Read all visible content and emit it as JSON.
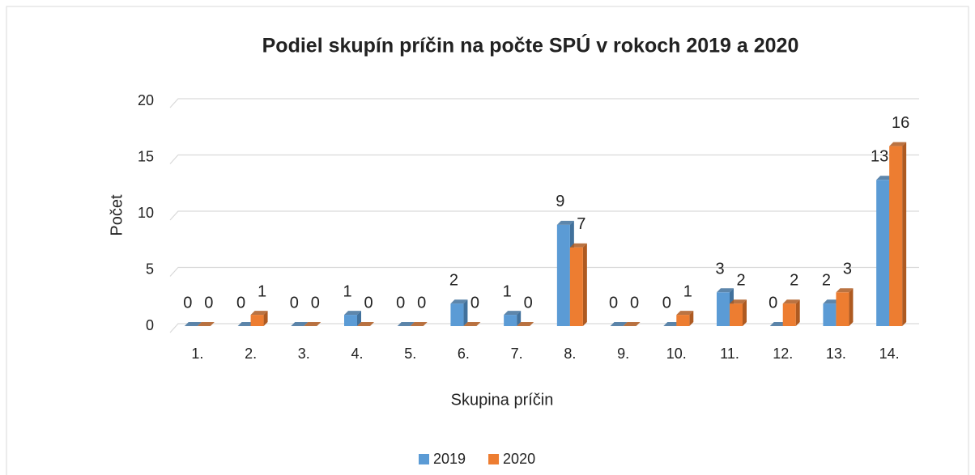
{
  "chart_data": {
    "type": "bar3d",
    "title": "Podiel skupín príčin na počte SPÚ v rokoch 2019 a 2020",
    "x_label": "Skupina príčin",
    "y_label": "Počet",
    "categories": [
      "1.",
      "2.",
      "3.",
      "4.",
      "5.",
      "6.",
      "7.",
      "8.",
      "9.",
      "10.",
      "11.",
      "12.",
      "13.",
      "14."
    ],
    "series": [
      {
        "name": "2019",
        "color": "#5b9bd5",
        "side": "#41719c",
        "values": [
          0,
          0,
          0,
          1,
          0,
          2,
          1,
          9,
          0,
          0,
          3,
          0,
          2,
          13
        ]
      },
      {
        "name": "2020",
        "color": "#ed7d31",
        "side": "#ae5a21",
        "values": [
          0,
          1,
          0,
          0,
          0,
          0,
          0,
          7,
          0,
          1,
          2,
          2,
          3,
          16
        ]
      }
    ],
    "ylim": [
      0,
      20
    ],
    "yticks": [
      0,
      5,
      10,
      15,
      20
    ],
    "grid": true,
    "legend": "bottom"
  }
}
